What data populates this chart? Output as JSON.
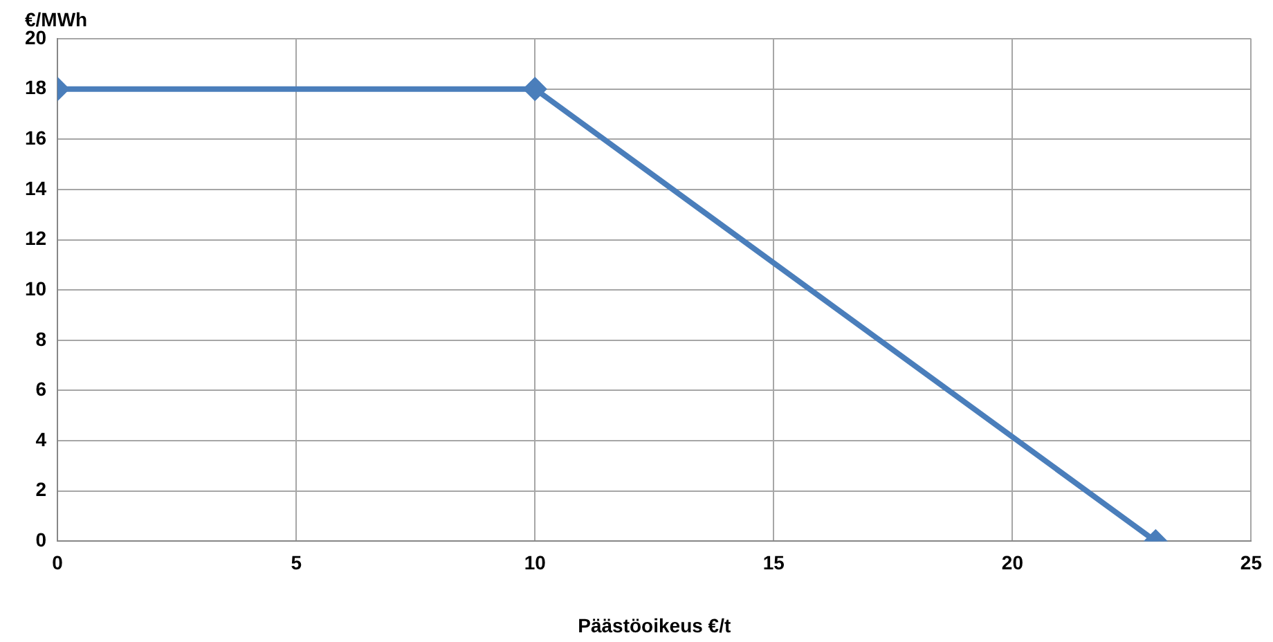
{
  "chart_data": {
    "type": "line",
    "ylabel": "€/MWh",
    "xlabel": "Päästöoikeus €/t",
    "x": [
      0,
      10,
      23
    ],
    "series": [
      {
        "color": "#4a7ebb",
        "values": [
          18,
          18,
          0
        ]
      }
    ],
    "xlim": [
      0,
      25
    ],
    "xticks": [
      0,
      5,
      10,
      15,
      20,
      25
    ],
    "ylim": [
      0,
      20
    ],
    "yticks": [
      0,
      2,
      4,
      6,
      8,
      10,
      12,
      14,
      16,
      18,
      20
    ],
    "grid": true,
    "legend": false,
    "marker": "diamond",
    "line_style": "solid"
  }
}
